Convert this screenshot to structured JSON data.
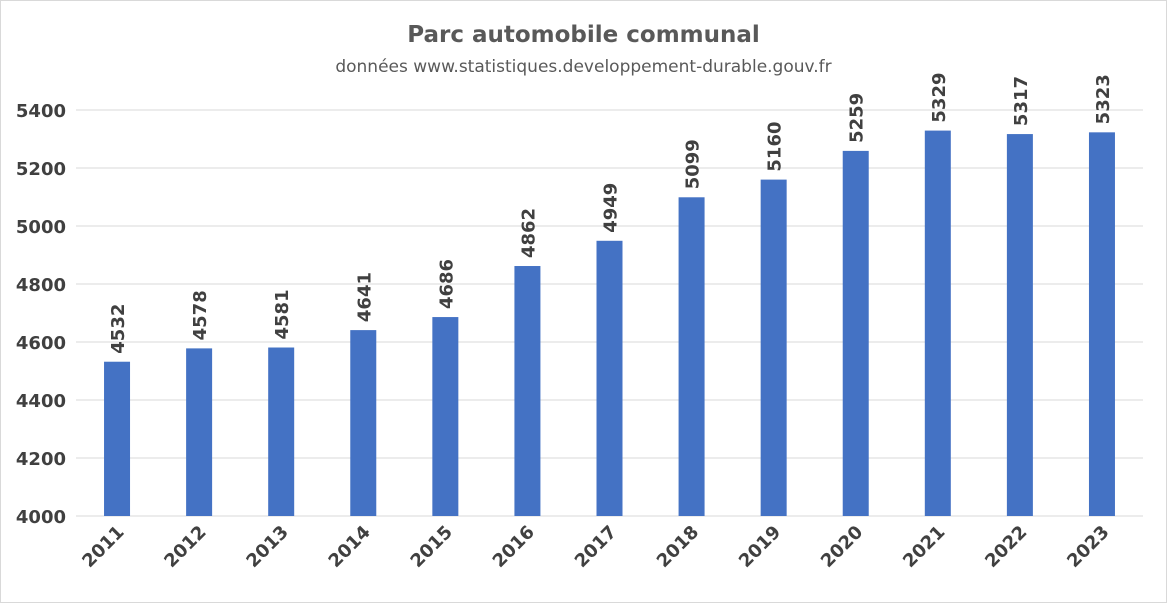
{
  "chart_data": {
    "type": "bar",
    "title": "Parc automobile communal",
    "subtitle": "données www.statistiques.developpement-durable.gouv.fr",
    "categories": [
      "2011",
      "2012",
      "2013",
      "2014",
      "2015",
      "2016",
      "2017",
      "2018",
      "2019",
      "2020",
      "2021",
      "2022",
      "2023"
    ],
    "values": [
      4532,
      4578,
      4581,
      4641,
      4686,
      4862,
      4949,
      5099,
      5160,
      5259,
      5329,
      5317,
      5323
    ],
    "ylim": [
      4000,
      5400
    ],
    "yticks": [
      4000,
      4200,
      4400,
      4600,
      4800,
      5000,
      5200,
      5400
    ],
    "grid": true,
    "legend": "none",
    "bar_color": "#4472C4",
    "grid_color": "#d9d9d9"
  }
}
